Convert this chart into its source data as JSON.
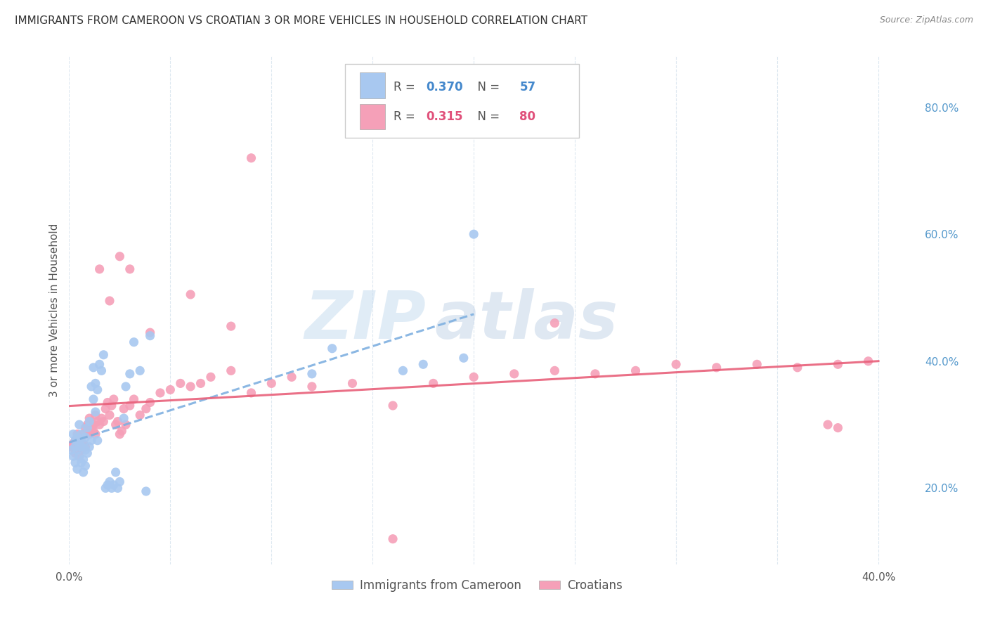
{
  "title": "IMMIGRANTS FROM CAMEROON VS CROATIAN 3 OR MORE VEHICLES IN HOUSEHOLD CORRELATION CHART",
  "source": "Source: ZipAtlas.com",
  "ylabel": "3 or more Vehicles in Household",
  "xlim": [
    0.0,
    0.42
  ],
  "ylim": [
    0.08,
    0.88
  ],
  "xticks": [
    0.0,
    0.05,
    0.1,
    0.15,
    0.2,
    0.25,
    0.3,
    0.35,
    0.4
  ],
  "yticks_right": [
    0.2,
    0.4,
    0.6,
    0.8
  ],
  "ytick_labels_right": [
    "20.0%",
    "40.0%",
    "60.0%",
    "80.0%"
  ],
  "legend_blue_r": "0.370",
  "legend_blue_n": "57",
  "legend_pink_r": "0.315",
  "legend_pink_n": "80",
  "blue_color": "#a8c8f0",
  "pink_color": "#f5a0b8",
  "blue_line_color": "#7fb0e0",
  "pink_line_color": "#e8607a",
  "watermark_color": "#d8e8f5",
  "background_color": "#ffffff",
  "grid_color": "#dde8f0",
  "cameroon_x": [
    0.001,
    0.002,
    0.002,
    0.003,
    0.003,
    0.003,
    0.004,
    0.004,
    0.004,
    0.005,
    0.005,
    0.005,
    0.006,
    0.006,
    0.006,
    0.007,
    0.007,
    0.007,
    0.008,
    0.008,
    0.008,
    0.009,
    0.009,
    0.01,
    0.01,
    0.011,
    0.011,
    0.012,
    0.012,
    0.013,
    0.013,
    0.014,
    0.014,
    0.015,
    0.016,
    0.017,
    0.018,
    0.019,
    0.02,
    0.021,
    0.022,
    0.023,
    0.024,
    0.025,
    0.027,
    0.028,
    0.03,
    0.032,
    0.035,
    0.038,
    0.04,
    0.12,
    0.13,
    0.165,
    0.175,
    0.195,
    0.2
  ],
  "cameroon_y": [
    0.26,
    0.25,
    0.285,
    0.24,
    0.265,
    0.275,
    0.23,
    0.26,
    0.28,
    0.25,
    0.27,
    0.3,
    0.24,
    0.265,
    0.285,
    0.225,
    0.245,
    0.27,
    0.235,
    0.26,
    0.28,
    0.255,
    0.295,
    0.265,
    0.305,
    0.275,
    0.36,
    0.34,
    0.39,
    0.32,
    0.365,
    0.275,
    0.355,
    0.395,
    0.385,
    0.41,
    0.2,
    0.205,
    0.21,
    0.2,
    0.205,
    0.225,
    0.2,
    0.21,
    0.31,
    0.36,
    0.38,
    0.43,
    0.385,
    0.195,
    0.44,
    0.38,
    0.42,
    0.385,
    0.395,
    0.405,
    0.6
  ],
  "croatian_x": [
    0.001,
    0.002,
    0.003,
    0.003,
    0.004,
    0.004,
    0.005,
    0.005,
    0.006,
    0.006,
    0.007,
    0.007,
    0.008,
    0.008,
    0.009,
    0.009,
    0.01,
    0.01,
    0.011,
    0.012,
    0.012,
    0.013,
    0.013,
    0.014,
    0.015,
    0.016,
    0.017,
    0.018,
    0.019,
    0.02,
    0.021,
    0.022,
    0.023,
    0.024,
    0.025,
    0.026,
    0.027,
    0.028,
    0.03,
    0.032,
    0.035,
    0.038,
    0.04,
    0.045,
    0.05,
    0.055,
    0.06,
    0.065,
    0.07,
    0.08,
    0.09,
    0.1,
    0.11,
    0.12,
    0.14,
    0.16,
    0.18,
    0.2,
    0.22,
    0.24,
    0.26,
    0.28,
    0.3,
    0.32,
    0.34,
    0.36,
    0.38,
    0.395,
    0.015,
    0.02,
    0.025,
    0.03,
    0.04,
    0.06,
    0.08,
    0.16,
    0.24,
    0.375,
    0.09,
    0.38
  ],
  "croatian_y": [
    0.265,
    0.27,
    0.255,
    0.275,
    0.26,
    0.285,
    0.25,
    0.275,
    0.26,
    0.275,
    0.27,
    0.285,
    0.265,
    0.295,
    0.285,
    0.3,
    0.285,
    0.31,
    0.295,
    0.29,
    0.3,
    0.285,
    0.315,
    0.305,
    0.3,
    0.31,
    0.305,
    0.325,
    0.335,
    0.315,
    0.33,
    0.34,
    0.3,
    0.305,
    0.285,
    0.29,
    0.325,
    0.3,
    0.33,
    0.34,
    0.315,
    0.325,
    0.335,
    0.35,
    0.355,
    0.365,
    0.36,
    0.365,
    0.375,
    0.385,
    0.35,
    0.365,
    0.375,
    0.36,
    0.365,
    0.33,
    0.365,
    0.375,
    0.38,
    0.385,
    0.38,
    0.385,
    0.395,
    0.39,
    0.395,
    0.39,
    0.395,
    0.4,
    0.545,
    0.495,
    0.565,
    0.545,
    0.445,
    0.505,
    0.455,
    0.12,
    0.46,
    0.3,
    0.72,
    0.295
  ]
}
